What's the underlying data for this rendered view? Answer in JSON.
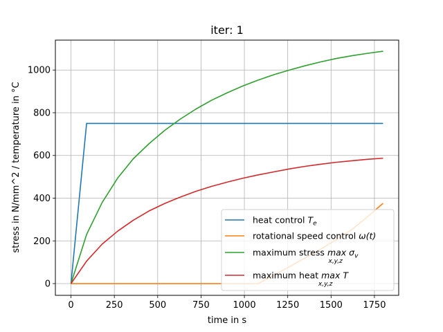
{
  "chart_data": {
    "type": "line",
    "title": "iter: 1",
    "xlabel": "time in s",
    "ylabel": "stress in N/mm^2 / temperature in °C",
    "xlim": [
      -90,
      1890
    ],
    "ylim": [
      -55,
      1140
    ],
    "xticks": [
      0,
      250,
      500,
      750,
      1000,
      1250,
      1500,
      1750
    ],
    "yticks": [
      0,
      200,
      400,
      600,
      800,
      1000
    ],
    "grid": true,
    "legend_position": "lower-right",
    "series": [
      {
        "name": "heat control T_e",
        "legend": {
          "main": "heat control ",
          "math": "T",
          "sub": "e",
          "suffix": ""
        },
        "color": "#1f77b4",
        "x": [
          0,
          90,
          1800
        ],
        "y": [
          0,
          750,
          750
        ]
      },
      {
        "name": "rotational speed control ω(t)",
        "legend": {
          "main": "rotational speed control ",
          "math": "ω(t)",
          "sub": "",
          "suffix": ""
        },
        "color": "#ff7f0e",
        "x": [
          0,
          1080,
          1170,
          1260,
          1350,
          1440,
          1530,
          1620,
          1710,
          1800
        ],
        "y": [
          0,
          0,
          39,
          79,
          120,
          161,
          206,
          253,
          313,
          376
        ]
      },
      {
        "name": "maximum stress max σ_v",
        "legend": {
          "main": "maximum stress ",
          "math": "max σ",
          "sub": "v",
          "undersub": "x,y,z"
        },
        "color": "#2ca02c",
        "x": [
          0,
          90,
          180,
          270,
          360,
          450,
          540,
          630,
          720,
          810,
          900,
          990,
          1080,
          1170,
          1260,
          1350,
          1440,
          1530,
          1620,
          1710,
          1800
        ],
        "y": [
          0,
          230,
          380,
          495,
          585,
          655,
          717,
          770,
          817,
          858,
          893,
          925,
          953,
          978,
          1000,
          1020,
          1038,
          1054,
          1067,
          1078,
          1088
        ]
      },
      {
        "name": "maximum heat max T",
        "legend": {
          "main": "maximum heat ",
          "math": "max T",
          "sub": "",
          "undersub": "x,y,z"
        },
        "color": "#d62728",
        "x": [
          0,
          90,
          180,
          270,
          360,
          450,
          540,
          630,
          720,
          810,
          900,
          990,
          1080,
          1170,
          1260,
          1350,
          1440,
          1530,
          1620,
          1710,
          1800
        ],
        "y": [
          0,
          105,
          185,
          246,
          297,
          340,
          375,
          405,
          432,
          455,
          475,
          493,
          509,
          523,
          537,
          549,
          559,
          568,
          575,
          582,
          587
        ]
      }
    ]
  }
}
